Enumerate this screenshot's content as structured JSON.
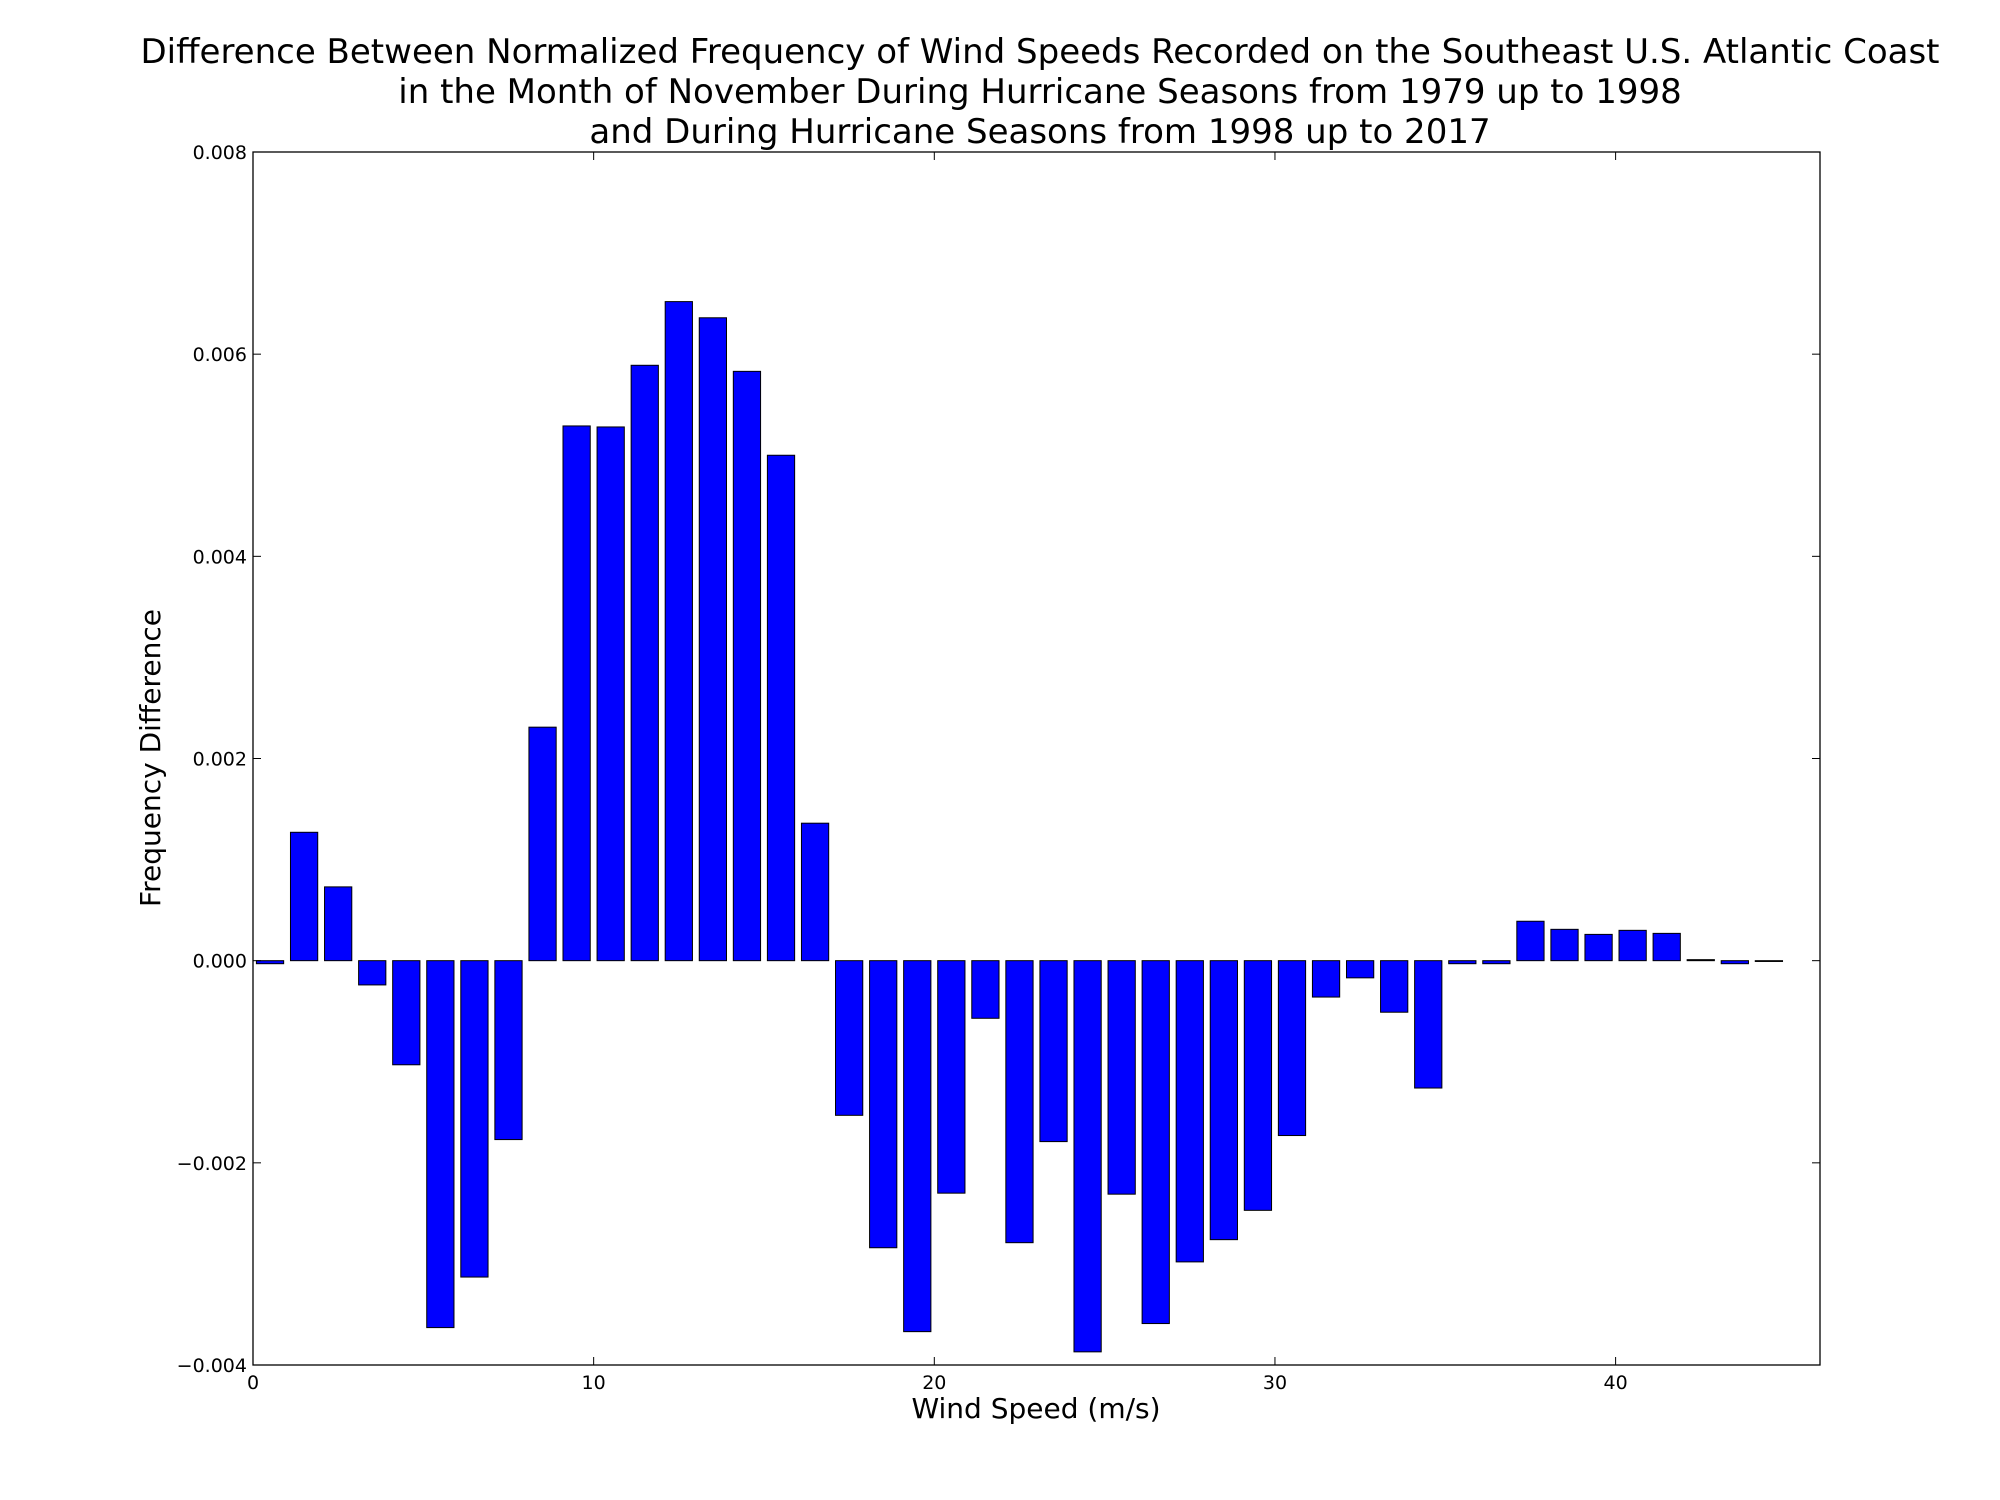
{
  "chart_data": {
    "type": "bar",
    "title_lines": [
      "Difference Between Normalized Frequency of Wind Speeds Recorded on the Southeast U.S. Atlantic Coast",
      "in the Month of November During Hurricane Seasons from 1979 up to 1998",
      "and During Hurricane Seasons from 1998 up to 2017"
    ],
    "xlabel": "Wind Speed (m/s)",
    "ylabel": "Frequency Difference",
    "xlim": [
      0,
      46
    ],
    "ylim": [
      -0.004,
      0.008
    ],
    "xticks": [
      0,
      10,
      20,
      30,
      40
    ],
    "xtick_labels": [
      "0",
      "10",
      "20",
      "30",
      "40"
    ],
    "yticks": [
      -0.004,
      -0.002,
      0.0,
      0.002,
      0.004,
      0.006,
      0.008
    ],
    "ytick_labels": [
      "−0.004",
      "−0.002",
      "0.000",
      "0.002",
      "0.004",
      "0.006",
      "0.008"
    ],
    "bar_width": 0.8,
    "x": [
      0,
      1,
      2,
      3,
      4,
      5,
      6,
      7,
      8,
      9,
      10,
      11,
      12,
      13,
      14,
      15,
      16,
      17,
      18,
      19,
      20,
      21,
      22,
      23,
      24,
      25,
      26,
      27,
      28,
      29,
      30,
      31,
      32,
      33,
      34,
      35,
      36,
      37,
      38,
      39,
      40,
      41,
      42,
      43,
      44
    ],
    "values": [
      -3e-05,
      0.00127,
      0.00073,
      -0.00024,
      -0.00103,
      -0.00363,
      -0.00313,
      -0.00177,
      0.00231,
      0.00529,
      0.00528,
      0.00589,
      0.00652,
      0.00636,
      0.00583,
      0.005,
      0.00136,
      -0.00153,
      -0.00284,
      -0.00367,
      -0.0023,
      -0.00057,
      -0.00279,
      -0.00179,
      -0.00387,
      -0.00231,
      -0.00359,
      -0.00298,
      -0.00276,
      -0.00247,
      -0.00173,
      -0.00036,
      -0.00017,
      -0.00051,
      -0.00126,
      -3e-05,
      -3e-05,
      0.00039,
      0.00031,
      0.00026,
      0.0003,
      0.00027,
      1e-05,
      -3e-05,
      0.0
    ],
    "bar_color": "#0000ff",
    "edge_color": "#000000",
    "grid": false
  }
}
